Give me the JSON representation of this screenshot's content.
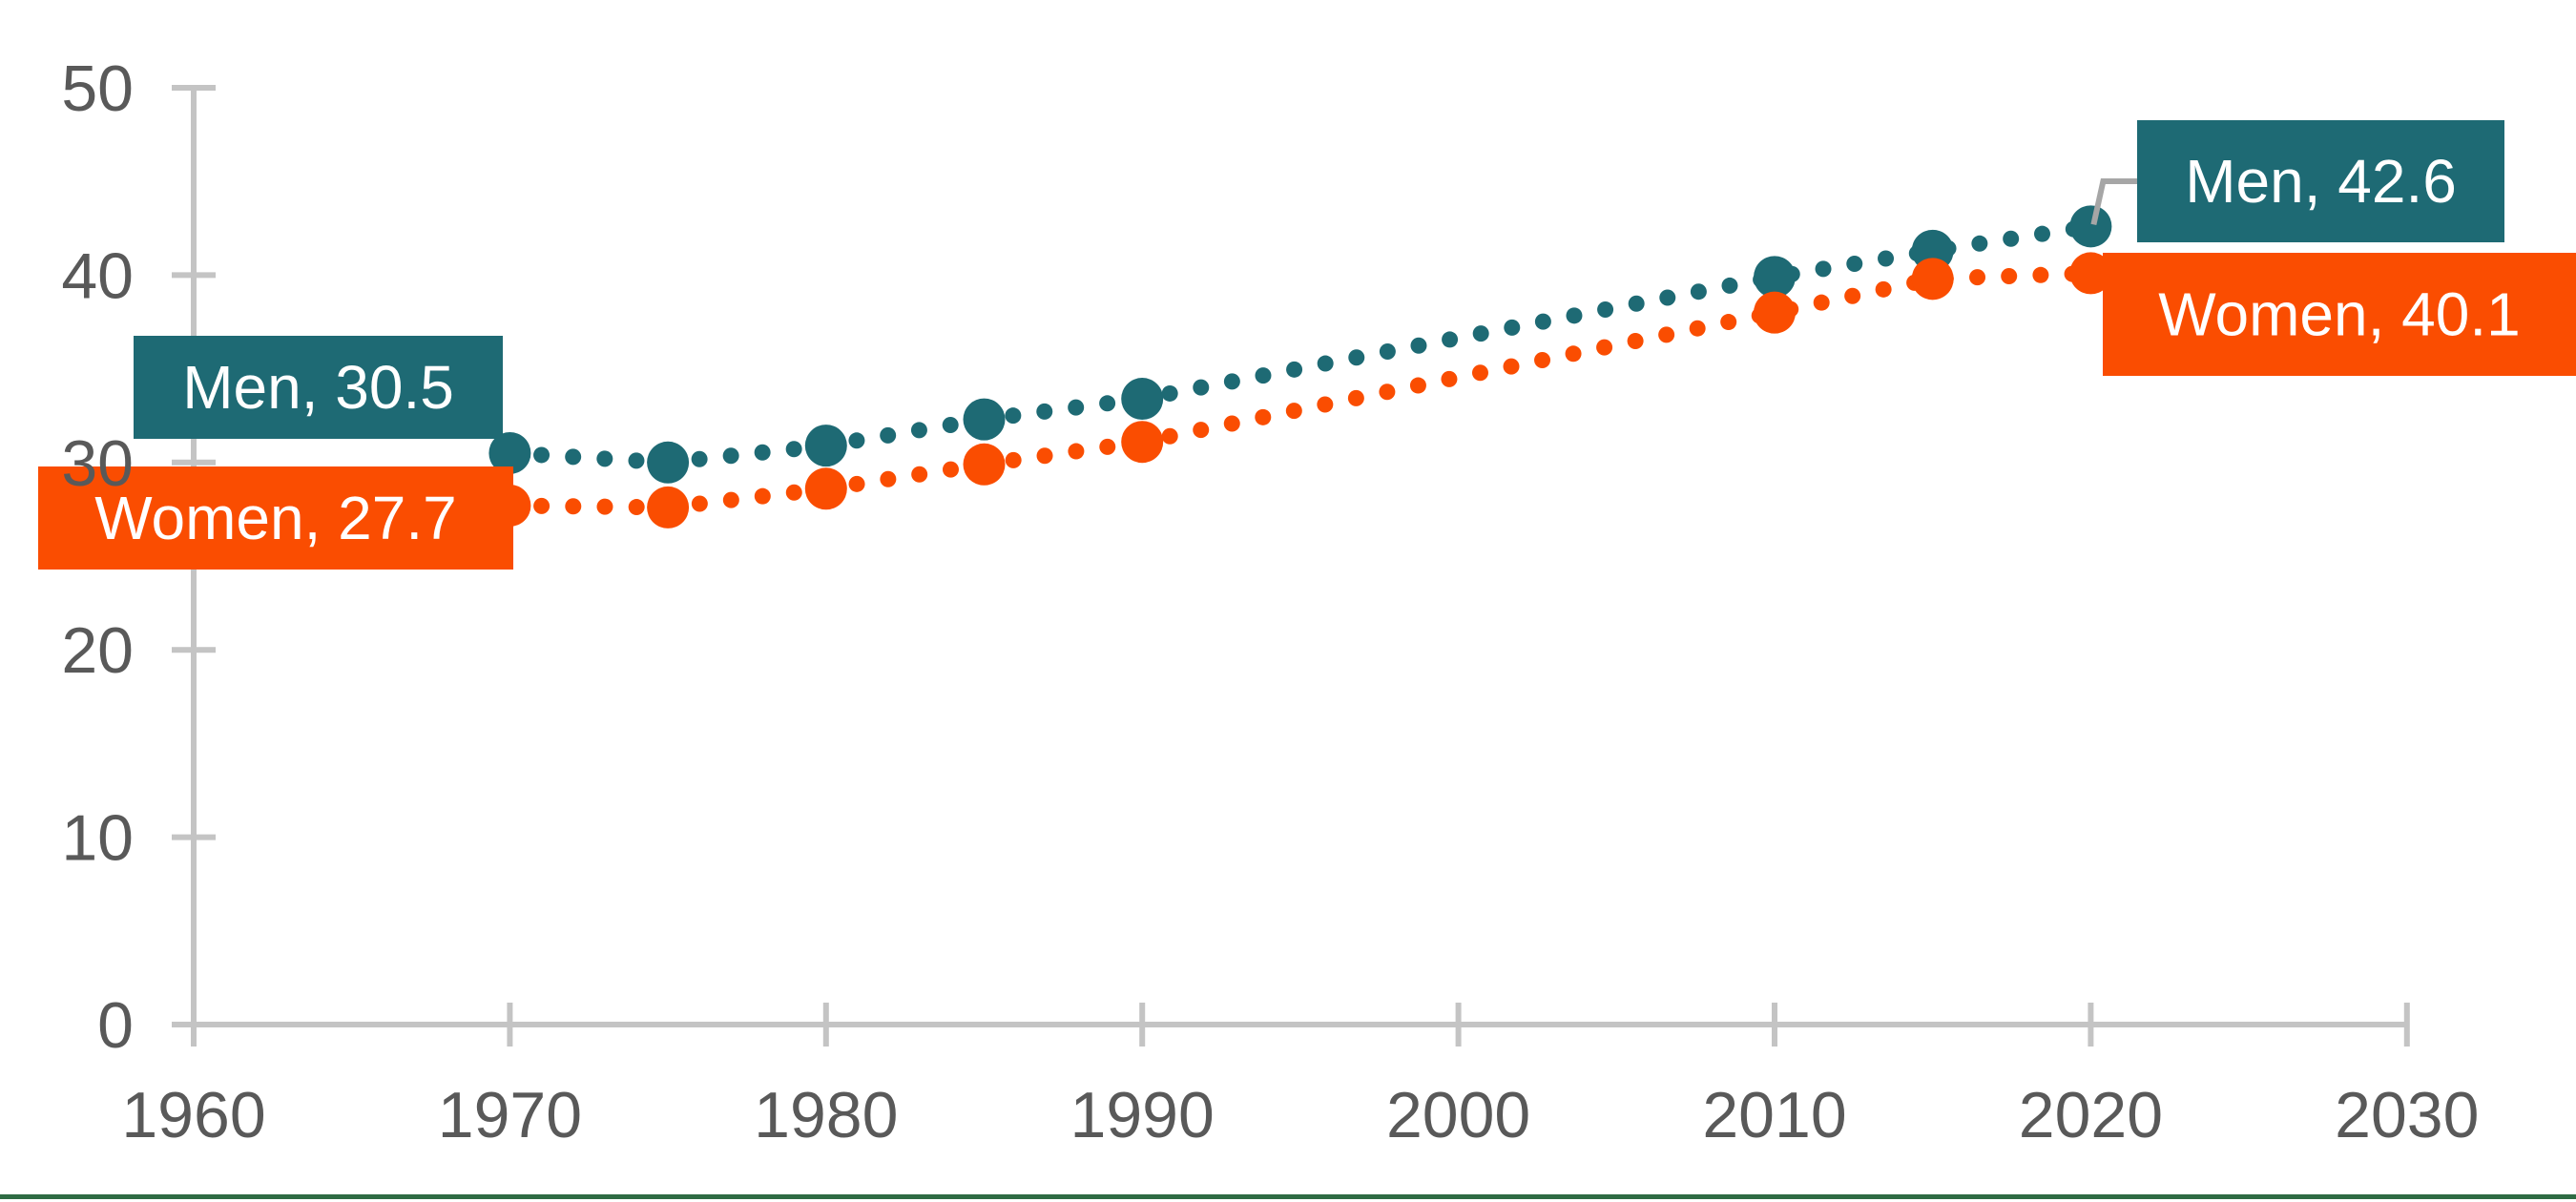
{
  "chart_data": {
    "type": "line",
    "style": "dotted-line-with-round-markers",
    "title": "",
    "x": [
      1970,
      1975,
      1980,
      1985,
      1990,
      2010,
      2015,
      2020
    ],
    "series": [
      {
        "name": "Men",
        "color": "#1E6A74",
        "values": [
          30.5,
          30.0,
          30.9,
          32.3,
          33.4,
          39.9,
          41.3,
          42.6
        ]
      },
      {
        "name": "Women",
        "color": "#FA4D01",
        "values": [
          27.7,
          27.6,
          28.6,
          29.9,
          31.1,
          38.0,
          39.8,
          40.1
        ]
      }
    ],
    "x_ticks": [
      "1960",
      "1970",
      "1980",
      "1990",
      "2000",
      "2010",
      "2020",
      "2030"
    ],
    "y_ticks": [
      "0",
      "10",
      "20",
      "30",
      "40",
      "50"
    ],
    "xlim": [
      1960,
      2030
    ],
    "ylim": [
      0,
      50
    ],
    "grid": false,
    "legend_position": "none",
    "point_labels": {
      "men_first": "Men, 30.5",
      "women_first": "Women, 27.7",
      "men_last": "Men, 42.6",
      "women_last": "Women, 40.1"
    }
  },
  "colors": {
    "men_series": "#1E6A74",
    "women_series": "#FA4D01",
    "axis_line": "#C4C4C4",
    "tick_label_text": "#595959",
    "leader_line": "#A6A6A6",
    "callout_text": "#FFFFFF",
    "bottom_rule": "#2E6B43",
    "background": "#FFFFFF"
  }
}
